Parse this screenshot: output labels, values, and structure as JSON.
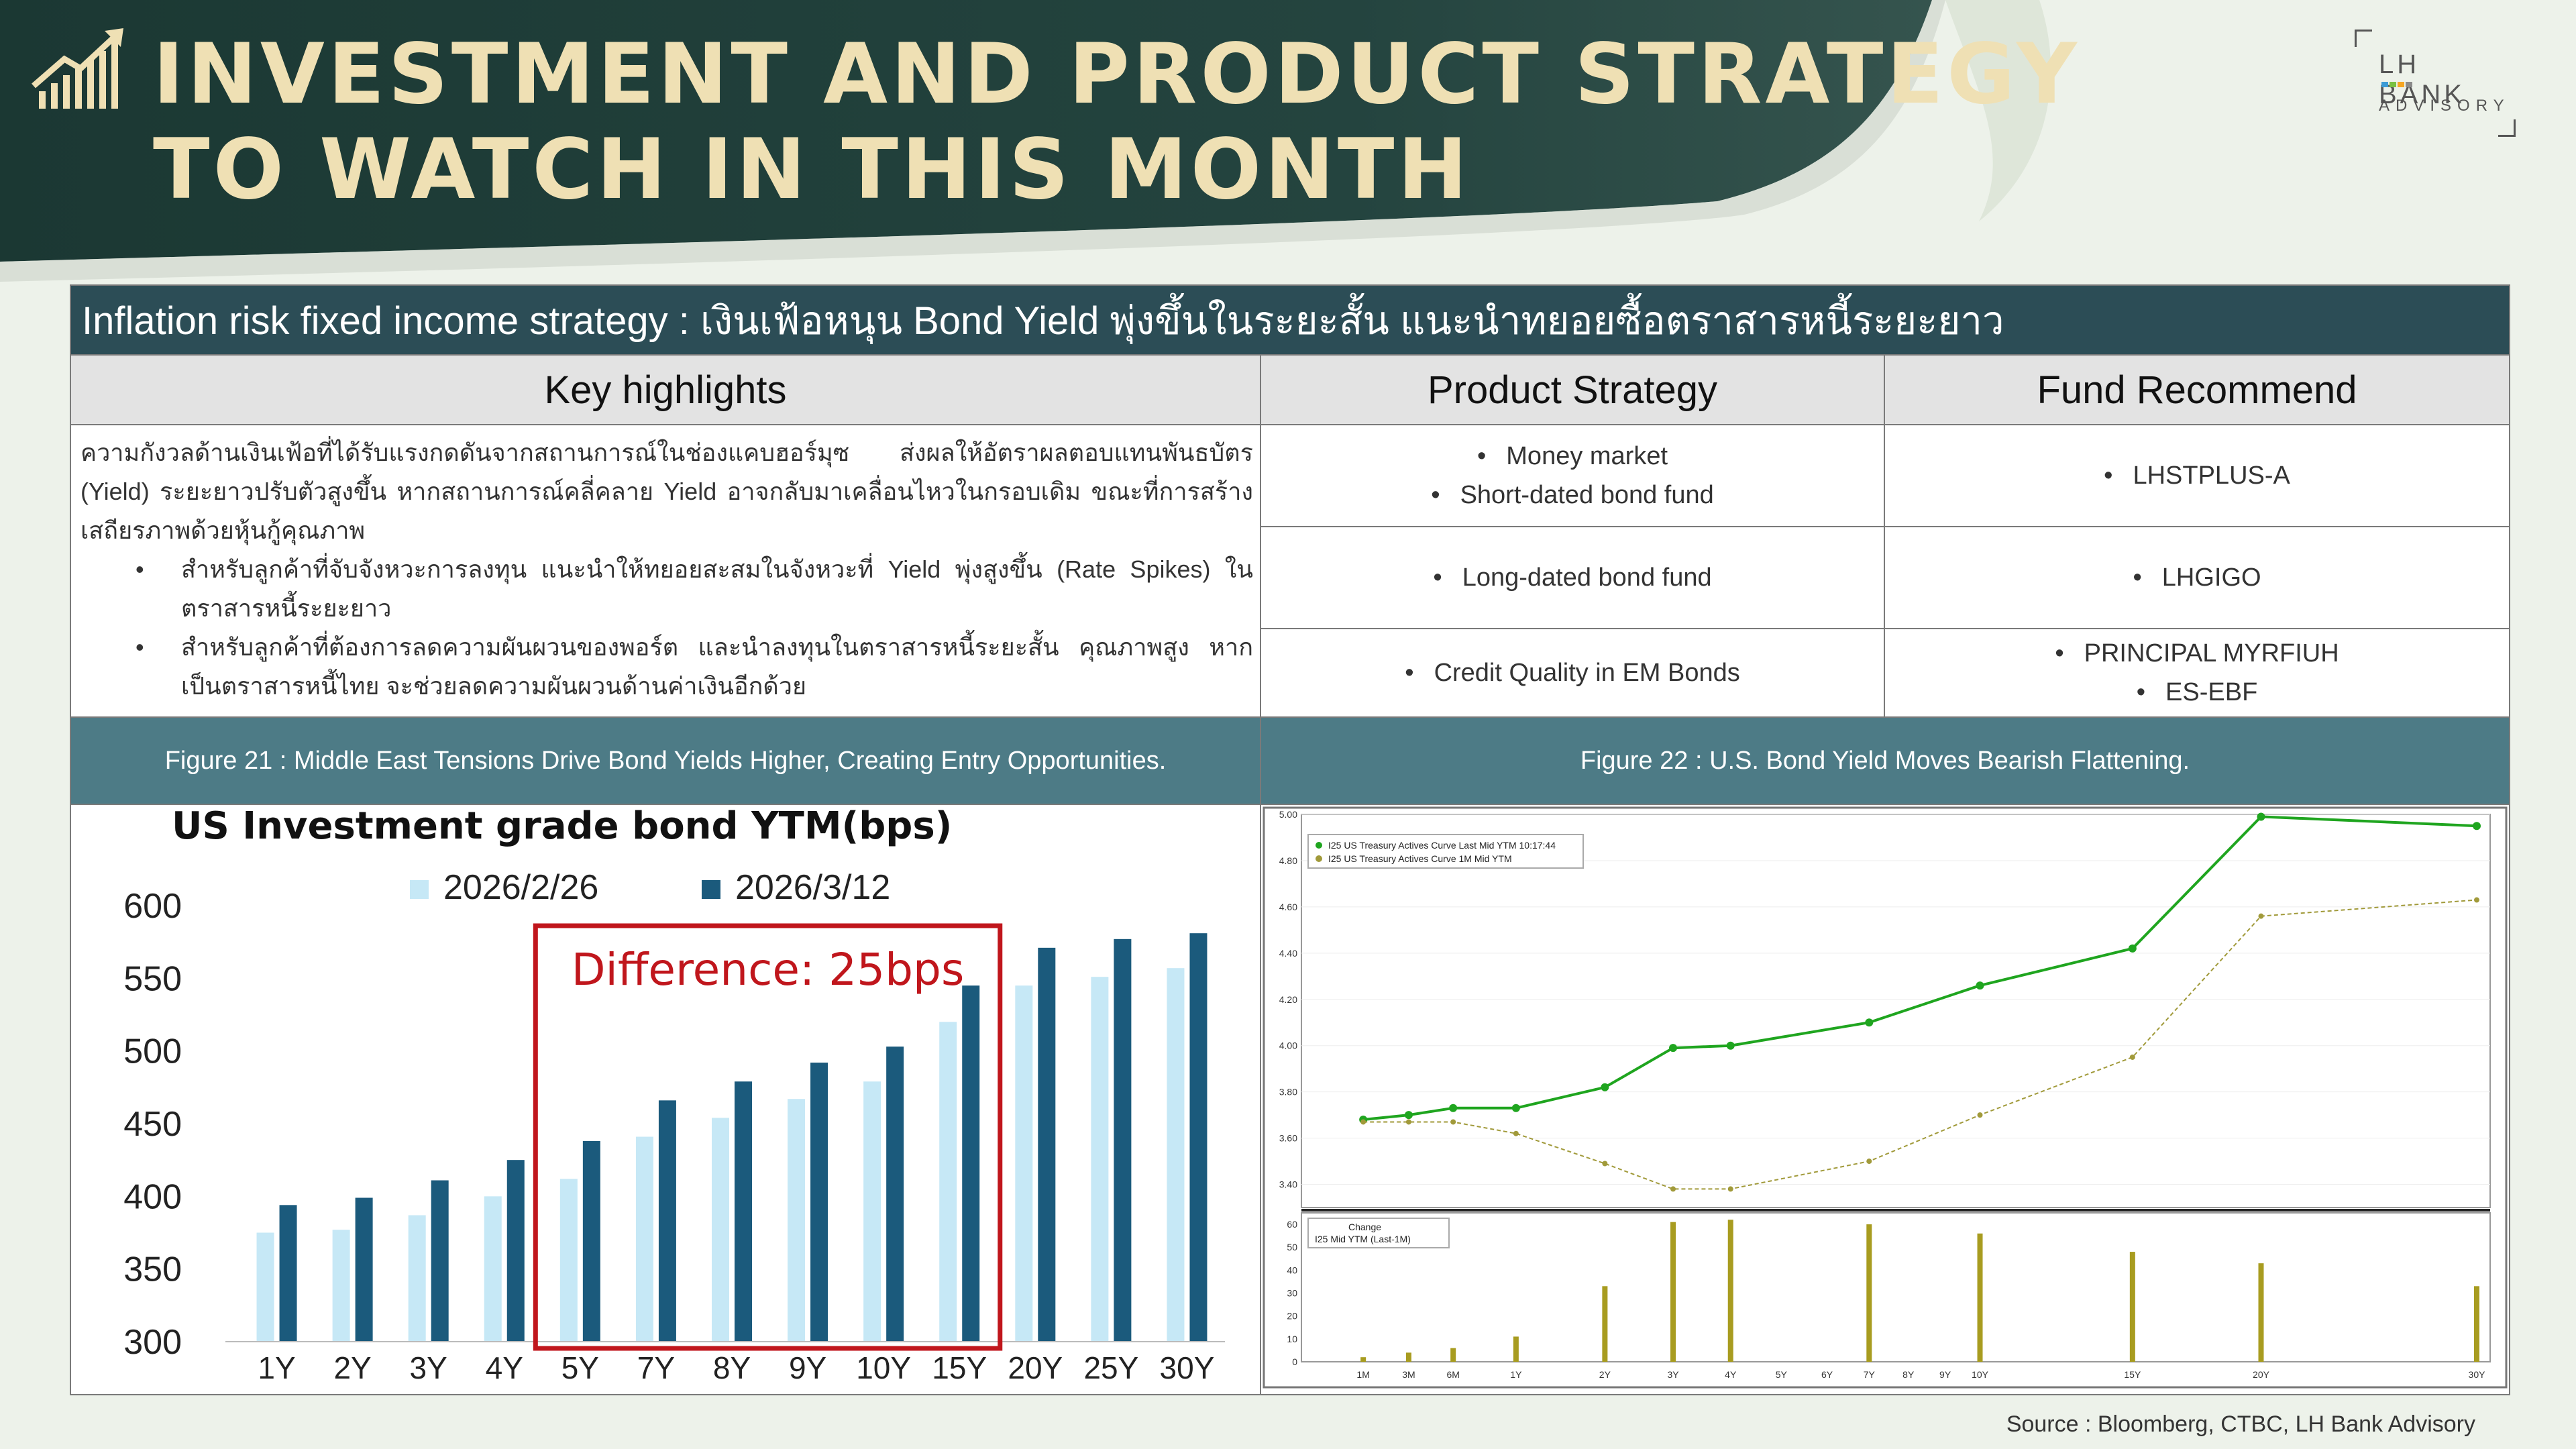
{
  "header": {
    "title_line1": "INVESTMENT AND PRODUCT STRATEGY",
    "title_line2": "TO WATCH IN THIS MONTH",
    "brand": {
      "name": "LH BANK",
      "sub": "ADVISORY"
    },
    "colors": {
      "dark_green": "#1e3a36",
      "gold": "#efe0b4"
    }
  },
  "table": {
    "title": "Inflation risk fixed income strategy : เงินเฟ้อหนุน Bond Yield พุ่งขึ้นในระยะสั้น แนะนำทยอยซื้อตราสารหนี้ระยะยาว",
    "headers": [
      "Key highlights",
      "Product Strategy",
      "Fund Recommend"
    ],
    "key_highlights": {
      "paragraph": "ความกังวลด้านเงินเฟ้อที่ได้รับแรงกดดันจากสถานการณ์ในช่องแคบฮอร์มุซ ส่งผลให้อัตราผลตอบแทนพันธบัตร (Yield) ระยะยาวปรับตัวสูงขึ้น หากสถานการณ์คลี่คลาย Yield อาจกลับมาเคลื่อนไหวในกรอบเดิม ขณะที่การสร้างเสถียรภาพด้วยหุ้นกู้คุณภาพ",
      "bullets": [
        "สำหรับลูกค้าที่จับจังหวะการลงทุน แนะนำให้ทยอยสะสมในจังหวะที่ Yield พุ่งสูงขึ้น (Rate Spikes) ในตราสารหนี้ระยะยาว",
        "สำหรับลูกค้าที่ต้องการลดความผันผวนของพอร์ต และนำลงทุนในตราสารหนี้ระยะสั้น คุณภาพสูง หากเป็นตราสารหนี้ไทย จะช่วยลดความผันผวนด้านค่าเงินอีกด้วย"
      ]
    },
    "rows": [
      {
        "strategy": [
          "Money market",
          "Short-dated bond fund"
        ],
        "funds": [
          "LHSTPLUS-A"
        ]
      },
      {
        "strategy": [
          "Long-dated bond fund"
        ],
        "funds": [
          "LHGIGO"
        ]
      },
      {
        "strategy": [
          "Credit Quality in EM Bonds"
        ],
        "funds": [
          "PRINCIPAL MYRFIUH",
          "ES-EBF"
        ]
      }
    ],
    "figure21_caption": "Figure 21 : Middle East Tensions Drive Bond Yields Higher, Creating Entry Opportunities.",
    "figure22_caption": "Figure 22 : U.S. Bond Yield Moves Bearish Flattening."
  },
  "source": "Source : Bloomberg,  CTBC, LH Bank Advisory",
  "chart_data": [
    {
      "type": "bar",
      "title": "US Investment grade bond YTM(bps)",
      "categories": [
        "1Y",
        "2Y",
        "3Y",
        "4Y",
        "5Y",
        "7Y",
        "8Y",
        "9Y",
        "10Y",
        "15Y",
        "20Y",
        "25Y",
        "30Y"
      ],
      "series": [
        {
          "name": "2026/2/26",
          "color": "#c6e8f6",
          "values": [
            375,
            377,
            387,
            400,
            412,
            441,
            454,
            467,
            479,
            520,
            545,
            551,
            557
          ]
        },
        {
          "name": "2026/3/12",
          "color": "#1b5a7c",
          "values": [
            394,
            399,
            411,
            425,
            438,
            466,
            479,
            492,
            503,
            545,
            571,
            577,
            581
          ]
        }
      ],
      "ylim": [
        300,
        600
      ],
      "yticks": [
        300,
        350,
        400,
        450,
        500,
        550,
        600
      ],
      "legend": "top",
      "annotation": {
        "text": "Difference: 25bps",
        "range": [
          "5Y",
          "15Y"
        ],
        "color": "#c0161c"
      }
    },
    {
      "type": "line",
      "title": "",
      "x": [
        "1M",
        "3M",
        "6M",
        "1Y",
        "2Y",
        "3Y",
        "4Y",
        "5Y",
        "6Y",
        "7Y",
        "8Y",
        "9Y",
        "10Y",
        "15Y",
        "20Y",
        "30Y"
      ],
      "series": [
        {
          "name": "I25 US Treasury Actives Curve Last Mid YTM 10:17:44",
          "color": "#1fa51f",
          "points": [
            [
              0.083,
              3.68
            ],
            [
              0.25,
              3.7
            ],
            [
              0.5,
              3.73
            ],
            [
              1,
              3.73
            ],
            [
              2,
              3.82
            ],
            [
              3,
              3.99
            ],
            [
              4,
              4.0
            ],
            [
              7,
              4.1
            ],
            [
              10,
              4.26
            ],
            [
              15,
              4.42
            ],
            [
              20,
              4.99
            ],
            [
              30,
              4.95
            ]
          ]
        },
        {
          "name": "I25 US Treasury Actives Curve 1M Mid YTM",
          "color": "#a19a3a",
          "points": [
            [
              0.083,
              3.67
            ],
            [
              0.25,
              3.67
            ],
            [
              0.5,
              3.67
            ],
            [
              1,
              3.62
            ],
            [
              2,
              3.49
            ],
            [
              3,
              3.38
            ],
            [
              4,
              3.38
            ],
            [
              7,
              3.5
            ],
            [
              10,
              3.7
            ],
            [
              15,
              3.95
            ],
            [
              20,
              4.56
            ],
            [
              30,
              4.63
            ]
          ]
        }
      ],
      "ylim": [
        3.3,
        5.0
      ],
      "yticks": [
        3.4,
        3.6,
        3.8,
        4.0,
        4.2,
        4.4,
        4.6,
        4.8,
        5.0
      ],
      "change_panel": {
        "legend": [
          "Change",
          "I25 Mid YTM (Last-1M)"
        ],
        "color": "#a89c20",
        "ylim": [
          0,
          65
        ],
        "yticks": [
          0,
          10,
          20,
          30,
          40,
          50,
          60
        ],
        "bars": [
          [
            0.083,
            2
          ],
          [
            0.25,
            4
          ],
          [
            0.5,
            6
          ],
          [
            1,
            11
          ],
          [
            2,
            33
          ],
          [
            3,
            61
          ],
          [
            4,
            62
          ],
          [
            7,
            60
          ],
          [
            10,
            56
          ],
          [
            15,
            48
          ],
          [
            20,
            43
          ],
          [
            30,
            33
          ]
        ]
      }
    }
  ]
}
